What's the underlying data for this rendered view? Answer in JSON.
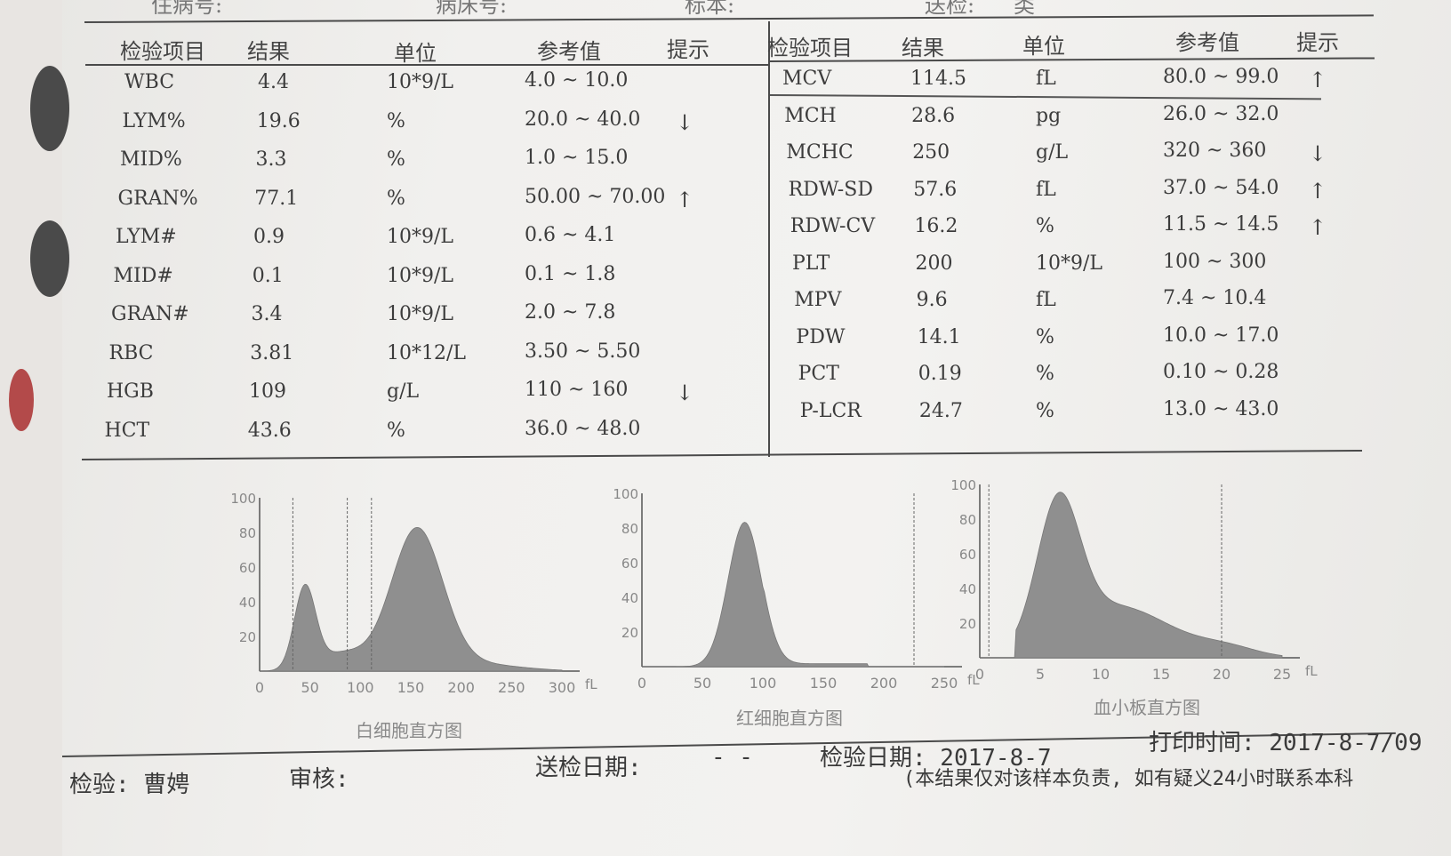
{
  "top_labels": [
    "住病号:",
    "病床号:",
    "标本:",
    "送检:",
    "类"
  ],
  "left_table": {
    "headers": [
      "检验项目",
      "结果",
      "单位",
      "参考值",
      "提示"
    ],
    "rows": [
      {
        "item": "WBC",
        "result": "4.4",
        "unit": "10*9/L",
        "ref": "4.0 ~ 10.0",
        "flag": ""
      },
      {
        "item": "LYM%",
        "result": "19.6",
        "unit": "%",
        "ref": "20.0 ~ 40.0",
        "flag": "↓"
      },
      {
        "item": "MID%",
        "result": "3.3",
        "unit": "%",
        "ref": "1.0 ~ 15.0",
        "flag": ""
      },
      {
        "item": "GRAN%",
        "result": "77.1",
        "unit": "%",
        "ref": "50.00 ~ 70.00",
        "flag": "↑"
      },
      {
        "item": "LYM#",
        "result": "0.9",
        "unit": "10*9/L",
        "ref": "0.6 ~ 4.1",
        "flag": ""
      },
      {
        "item": "MID#",
        "result": "0.1",
        "unit": "10*9/L",
        "ref": "0.1 ~ 1.8",
        "flag": ""
      },
      {
        "item": "GRAN#",
        "result": "3.4",
        "unit": "10*9/L",
        "ref": "2.0 ~ 7.8",
        "flag": ""
      },
      {
        "item": "RBC",
        "result": "3.81",
        "unit": "10*12/L",
        "ref": "3.50 ~ 5.50",
        "flag": ""
      },
      {
        "item": "HGB",
        "result": "109",
        "unit": "g/L",
        "ref": "110 ~ 160",
        "flag": "↓"
      },
      {
        "item": "HCT",
        "result": "43.6",
        "unit": "%",
        "ref": "36.0 ~ 48.0",
        "flag": ""
      }
    ]
  },
  "right_table": {
    "headers": [
      "检验项目",
      "结果",
      "单位",
      "参考值",
      "提示"
    ],
    "rows": [
      {
        "item": "MCV",
        "result": "114.5",
        "unit": "fL",
        "ref": "80.0 ~ 99.0",
        "flag": "↑"
      },
      {
        "item": "MCH",
        "result": "28.6",
        "unit": "pg",
        "ref": "26.0 ~ 32.0",
        "flag": ""
      },
      {
        "item": "MCHC",
        "result": "250",
        "unit": "g/L",
        "ref": "320 ~ 360",
        "flag": "↓"
      },
      {
        "item": "RDW-SD",
        "result": "57.6",
        "unit": "fL",
        "ref": "37.0 ~ 54.0",
        "flag": "↑"
      },
      {
        "item": "RDW-CV",
        "result": "16.2",
        "unit": "%",
        "ref": "11.5 ~ 14.5",
        "flag": "↑"
      },
      {
        "item": "PLT",
        "result": "200",
        "unit": "10*9/L",
        "ref": "100 ~ 300",
        "flag": ""
      },
      {
        "item": "MPV",
        "result": "9.6",
        "unit": "fL",
        "ref": "7.4 ~ 10.4",
        "flag": ""
      },
      {
        "item": "PDW",
        "result": "14.1",
        "unit": "%",
        "ref": "10.0 ~ 17.0",
        "flag": ""
      },
      {
        "item": "PCT",
        "result": "0.19",
        "unit": "%",
        "ref": "0.10 ~ 0.28",
        "flag": ""
      },
      {
        "item": "P-LCR",
        "result": "24.7",
        "unit": "%",
        "ref": "13.0 ~ 43.0",
        "flag": ""
      }
    ]
  },
  "histograms": [
    {
      "caption": "白细胞直方图",
      "y_ticks": [
        "20",
        "40",
        "60",
        "80",
        "100"
      ],
      "x_ticks": [
        "0",
        "50",
        "100",
        "150",
        "200",
        "250",
        "300"
      ],
      "x_unit": "fL",
      "color": "#8f8f8f"
    },
    {
      "caption": "红细胞直方图",
      "y_ticks": [
        "20",
        "40",
        "60",
        "80",
        "100"
      ],
      "x_ticks": [
        "0",
        "50",
        "100",
        "150",
        "200",
        "250"
      ],
      "x_unit": "fL",
      "color": "#8f8f8f"
    },
    {
      "caption": "血小板直方图",
      "y_ticks": [
        "20",
        "40",
        "60",
        "80",
        "100"
      ],
      "x_ticks": [
        "0",
        "5",
        "10",
        "15",
        "20",
        "25"
      ],
      "x_unit": "fL",
      "color": "#8f8f8f"
    }
  ],
  "footer": {
    "tester": "检验: 曹娉",
    "reviewer": "审核:",
    "send_date_label": "送检日期:",
    "send_date_value": "- -",
    "test_date": "检验日期: 2017-8-7",
    "print_time": "打印时间: 2017-8-7/09",
    "note": "(本结果仅对该样本负责, 如有疑义24小时联系本科"
  }
}
